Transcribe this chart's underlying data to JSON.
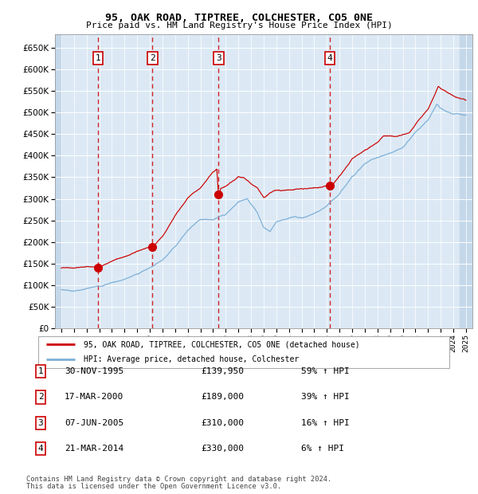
{
  "title1": "95, OAK ROAD, TIPTREE, COLCHESTER, CO5 0NE",
  "title2": "Price paid vs. HM Land Registry's House Price Index (HPI)",
  "legend_label_red": "95, OAK ROAD, TIPTREE, COLCHESTER, CO5 0NE (detached house)",
  "legend_label_blue": "HPI: Average price, detached house, Colchester",
  "footer1": "Contains HM Land Registry data © Crown copyright and database right 2024.",
  "footer2": "This data is licensed under the Open Government Licence v3.0.",
  "transactions": [
    {
      "num": 1,
      "date": "30-NOV-1995",
      "year": 1995.92,
      "price": 139950,
      "pct": "59%",
      "dir": "↑"
    },
    {
      "num": 2,
      "date": "17-MAR-2000",
      "year": 2000.21,
      "price": 189000,
      "pct": "39%",
      "dir": "↑"
    },
    {
      "num": 3,
      "date": "07-JUN-2005",
      "year": 2005.44,
      "price": 310000,
      "pct": "16%",
      "dir": "↑"
    },
    {
      "num": 4,
      "date": "21-MAR-2014",
      "year": 2014.22,
      "price": 330000,
      "pct": "6%",
      "dir": "↑"
    }
  ],
  "table_rows": [
    {
      "num": "1",
      "date": "30-NOV-1995",
      "price": "£139,950",
      "info": "59% ↑ HPI"
    },
    {
      "num": "2",
      "date": "17-MAR-2000",
      "price": "£189,000",
      "info": "39% ↑ HPI"
    },
    {
      "num": "3",
      "date": "07-JUN-2005",
      "price": "£310,000",
      "info": "16% ↑ HPI"
    },
    {
      "num": "4",
      "date": "21-MAR-2014",
      "price": "£330,000",
      "info": "6% ↑ HPI"
    }
  ],
  "ylim": [
    0,
    680000
  ],
  "yticks": [
    0,
    50000,
    100000,
    150000,
    200000,
    250000,
    300000,
    350000,
    400000,
    450000,
    500000,
    550000,
    600000,
    650000
  ],
  "xlim_start": 1992.5,
  "xlim_end": 2025.5,
  "background_color": "#dce9f5",
  "hatch_color": "#c5d8ea",
  "grid_color": "#ffffff",
  "red_line_color": "#cc0000",
  "blue_line_color": "#7aaed6",
  "dashed_line_color": "#cc0000",
  "marker_color": "#cc0000",
  "box_edge_color": "#cc0000",
  "hpi_key_points": [
    [
      1993.0,
      90000
    ],
    [
      1994.0,
      88000
    ],
    [
      1995.0,
      93000
    ],
    [
      1996.0,
      98000
    ],
    [
      1997.0,
      108000
    ],
    [
      1998.0,
      116000
    ],
    [
      1999.0,
      128000
    ],
    [
      2000.0,
      143000
    ],
    [
      2001.0,
      163000
    ],
    [
      2002.0,
      196000
    ],
    [
      2003.0,
      235000
    ],
    [
      2004.0,
      262000
    ],
    [
      2005.0,
      263000
    ],
    [
      2005.5,
      268000
    ],
    [
      2006.0,
      272000
    ],
    [
      2007.0,
      300000
    ],
    [
      2007.7,
      310000
    ],
    [
      2008.5,
      278000
    ],
    [
      2009.0,
      245000
    ],
    [
      2009.5,
      235000
    ],
    [
      2010.0,
      258000
    ],
    [
      2010.5,
      263000
    ],
    [
      2011.0,
      268000
    ],
    [
      2011.5,
      270000
    ],
    [
      2012.0,
      268000
    ],
    [
      2012.5,
      272000
    ],
    [
      2013.0,
      278000
    ],
    [
      2013.5,
      283000
    ],
    [
      2014.0,
      292000
    ],
    [
      2015.0,
      318000
    ],
    [
      2016.0,
      360000
    ],
    [
      2017.0,
      390000
    ],
    [
      2018.0,
      405000
    ],
    [
      2019.0,
      415000
    ],
    [
      2020.0,
      425000
    ],
    [
      2021.0,
      462000
    ],
    [
      2022.0,
      490000
    ],
    [
      2022.7,
      530000
    ],
    [
      2023.0,
      520000
    ],
    [
      2023.5,
      510000
    ],
    [
      2024.0,
      505000
    ],
    [
      2024.5,
      503000
    ],
    [
      2025.0,
      500000
    ]
  ],
  "red_key_points": [
    [
      1993.0,
      140000
    ],
    [
      1994.0,
      138000
    ],
    [
      1995.5,
      143000
    ],
    [
      1995.92,
      139950
    ],
    [
      1996.0,
      143000
    ],
    [
      1997.0,
      158000
    ],
    [
      1998.0,
      170000
    ],
    [
      1999.0,
      183000
    ],
    [
      2000.0,
      190000
    ],
    [
      2000.21,
      189000
    ],
    [
      2001.0,
      215000
    ],
    [
      2002.0,
      262000
    ],
    [
      2003.0,
      305000
    ],
    [
      2004.0,
      330000
    ],
    [
      2004.5,
      350000
    ],
    [
      2005.0,
      370000
    ],
    [
      2005.3,
      375000
    ],
    [
      2005.44,
      310000
    ],
    [
      2005.6,
      330000
    ],
    [
      2006.0,
      335000
    ],
    [
      2007.0,
      355000
    ],
    [
      2007.5,
      352000
    ],
    [
      2008.0,
      338000
    ],
    [
      2008.5,
      330000
    ],
    [
      2009.0,
      305000
    ],
    [
      2009.3,
      310000
    ],
    [
      2009.5,
      315000
    ],
    [
      2010.0,
      320000
    ],
    [
      2011.0,
      322000
    ],
    [
      2012.0,
      328000
    ],
    [
      2013.0,
      330000
    ],
    [
      2013.5,
      330000
    ],
    [
      2014.0,
      335000
    ],
    [
      2014.22,
      330000
    ],
    [
      2015.0,
      360000
    ],
    [
      2016.0,
      400000
    ],
    [
      2017.0,
      420000
    ],
    [
      2018.0,
      435000
    ],
    [
      2018.5,
      450000
    ],
    [
      2019.0,
      448000
    ],
    [
      2019.5,
      445000
    ],
    [
      2020.0,
      450000
    ],
    [
      2020.5,
      455000
    ],
    [
      2021.0,
      475000
    ],
    [
      2022.0,
      510000
    ],
    [
      2022.5,
      540000
    ],
    [
      2022.8,
      560000
    ],
    [
      2023.0,
      555000
    ],
    [
      2023.3,
      550000
    ],
    [
      2023.6,
      545000
    ],
    [
      2024.0,
      540000
    ],
    [
      2024.5,
      535000
    ],
    [
      2025.0,
      530000
    ]
  ]
}
